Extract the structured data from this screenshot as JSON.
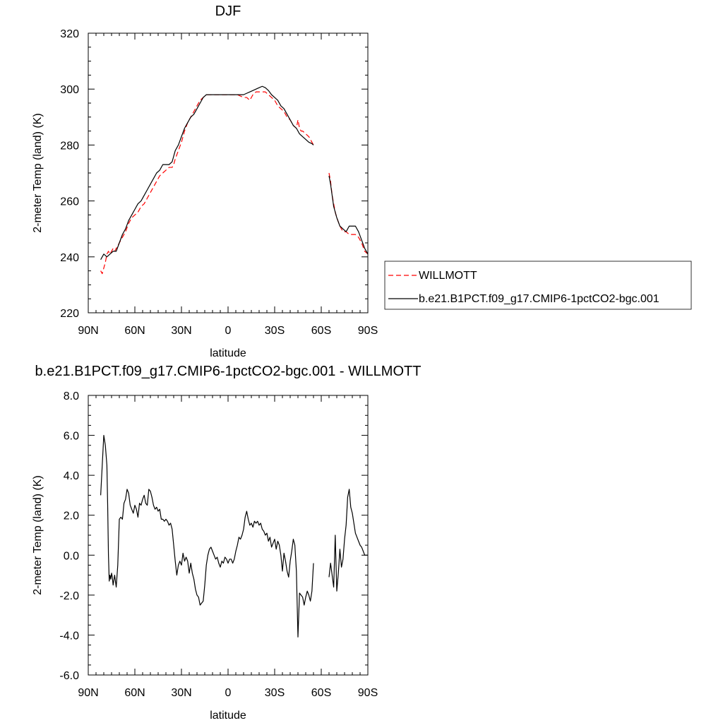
{
  "chart_data": [
    {
      "type": "line",
      "title": "DJF",
      "xlabel": "latitude",
      "ylabel": "2-meter Temp (land) (K)",
      "x_direction": "north-to-south",
      "xlim": [
        90,
        -90
      ],
      "ylim": [
        220,
        320
      ],
      "x_ticks": [
        90,
        60,
        30,
        0,
        -30,
        -60,
        -90
      ],
      "x_tick_labels": [
        "90N",
        "60N",
        "30N",
        "0",
        "30S",
        "60S",
        "90S"
      ],
      "y_ticks": [
        220,
        240,
        260,
        280,
        300,
        320
      ],
      "y_tick_labels": [
        "220",
        "240",
        "260",
        "280",
        "300",
        "320"
      ],
      "legend": {
        "placement": "right",
        "entries": [
          {
            "label": "WILLMOTT",
            "color": "#ff0000",
            "dash": "dashed"
          },
          {
            "label": "b.e21.B1PCT.f09_g17.CMIP6-1pctCO2-bgc.001",
            "color": "#000000",
            "dash": "solid"
          }
        ]
      },
      "series": [
        {
          "name": "WILLMOTT",
          "color": "#ff0000",
          "dash": "dashed",
          "segments": [
            {
              "x": [
                82,
                81,
                80,
                79,
                78,
                77,
                76,
                75,
                74,
                73,
                72,
                71,
                70,
                68,
                66,
                64,
                62,
                60,
                58,
                56,
                54,
                52,
                50,
                48,
                46,
                44,
                42,
                40,
                38,
                36,
                35,
                34,
                32,
                30,
                28,
                26,
                24,
                22,
                20,
                18,
                16,
                14,
                12,
                10,
                8,
                6,
                4,
                2,
                0,
                -2,
                -4,
                -6,
                -8,
                -10,
                -12,
                -14,
                -16,
                -18,
                -20,
                -22,
                -24,
                -26,
                -28,
                -30,
                -32,
                -34,
                -36,
                -38,
                -40,
                -42,
                -44,
                -45,
                -46,
                -47,
                -48,
                -50,
                -52,
                -54,
                -55
              ],
              "y": [
                235,
                234,
                236,
                238,
                241,
                242,
                241,
                242,
                243,
                242,
                243,
                244,
                245,
                247,
                249,
                252,
                254,
                255,
                256,
                258,
                259,
                261,
                263,
                265,
                267,
                269,
                270,
                271,
                272,
                272,
                273,
                275,
                278,
                281,
                285,
                288,
                290,
                292,
                294,
                296,
                297,
                298,
                298,
                298,
                298,
                298,
                298,
                298,
                298,
                298,
                298,
                298,
                297.5,
                297,
                297,
                296,
                298,
                299,
                299,
                299,
                299,
                298,
                297,
                296,
                294,
                293,
                292,
                290,
                289,
                287,
                286,
                289,
                286,
                285,
                285,
                284,
                283,
                281,
                280
              ]
            },
            {
              "x": [
                -65,
                -66,
                -67,
                -68,
                -69,
                -70,
                -72,
                -74,
                -76,
                -78,
                -80,
                -82,
                -84,
                -86,
                -88,
                -90
              ],
              "y": [
                270,
                267,
                262,
                259,
                256,
                254,
                251,
                249,
                249,
                248,
                248,
                248,
                247,
                245,
                242,
                241
              ]
            }
          ]
        },
        {
          "name": "b.e21.B1PCT.f09_g17.CMIP6-1pctCO2-bgc.001",
          "color": "#000000",
          "dash": "solid",
          "segments": [
            {
              "x": [
                82,
                80,
                78,
                76,
                74,
                72,
                70,
                68,
                66,
                64,
                62,
                60,
                58,
                56,
                54,
                52,
                50,
                48,
                46,
                44,
                42,
                40,
                38,
                36,
                35,
                34,
                32,
                30,
                28,
                26,
                24,
                22,
                20,
                18,
                16,
                14,
                12,
                10,
                8,
                6,
                4,
                2,
                0,
                -2,
                -4,
                -6,
                -8,
                -10,
                -12,
                -14,
                -16,
                -18,
                -20,
                -22,
                -24,
                -26,
                -28,
                -30,
                -32,
                -34,
                -36,
                -38,
                -40,
                -42,
                -44,
                -46,
                -48,
                -50,
                -52,
                -54,
                -55
              ],
              "y": [
                239,
                241,
                240,
                241,
                242,
                242,
                245,
                248,
                250,
                253,
                255,
                257,
                259,
                260,
                262,
                264,
                266,
                268,
                270,
                271,
                273,
                273,
                273,
                274,
                276,
                278,
                280,
                283,
                286,
                288,
                290,
                291,
                293,
                295,
                297,
                298,
                298,
                298,
                298,
                298,
                298,
                298,
                298,
                298,
                298,
                298,
                298,
                298,
                298.5,
                299,
                299.5,
                300,
                300.5,
                301,
                300.5,
                299.5,
                298,
                297,
                296,
                294,
                293,
                291,
                289,
                287,
                286,
                284,
                283,
                282,
                281,
                280.5,
                280
              ]
            },
            {
              "x": [
                -65,
                -66,
                -67,
                -68,
                -69,
                -70,
                -72,
                -74,
                -76,
                -78,
                -80,
                -82,
                -84,
                -86,
                -88,
                -90
              ],
              "y": [
                269,
                266,
                262,
                258,
                256,
                254,
                251,
                250,
                249,
                251,
                251,
                251,
                249,
                246,
                243,
                241
              ]
            }
          ]
        }
      ]
    },
    {
      "type": "line",
      "title": "b.e21.B1PCT.f09_g17.CMIP6-1pctCO2-bgc.001 - WILLMOTT",
      "xlabel": "latitude",
      "ylabel": "2-meter Temp (land) (K)",
      "x_direction": "north-to-south",
      "xlim": [
        90,
        -90
      ],
      "ylim": [
        -6,
        8
      ],
      "x_ticks": [
        90,
        60,
        30,
        0,
        -30,
        -60,
        -90
      ],
      "x_tick_labels": [
        "90N",
        "60N",
        "30N",
        "0",
        "30S",
        "60S",
        "90S"
      ],
      "y_ticks": [
        -6,
        -4,
        -2,
        0,
        2,
        4,
        6,
        8
      ],
      "y_tick_labels": [
        "-6.0",
        "-4.0",
        "-2.0",
        "0.0",
        "2.0",
        "4.0",
        "6.0",
        "8.0"
      ],
      "series": [
        {
          "color": "#000000",
          "dash": "solid",
          "segments": [
            {
              "x": [
                82,
                81,
                80,
                79,
                78,
                77.5,
                77,
                76.5,
                76,
                75.5,
                75,
                74.5,
                74,
                73,
                72,
                71,
                70,
                69,
                68,
                67,
                66,
                65,
                64,
                63,
                62,
                61,
                60,
                59,
                58,
                57,
                56,
                55,
                54,
                53,
                52,
                51,
                50,
                49,
                48,
                47,
                46,
                45,
                44,
                43,
                42,
                41,
                40,
                39,
                38,
                37,
                36,
                35,
                34,
                33,
                32,
                31,
                30,
                29,
                28,
                27,
                26,
                25,
                24,
                23,
                22,
                21,
                20,
                19,
                18,
                17,
                16,
                15,
                14,
                13,
                12,
                11,
                10,
                9,
                8,
                7,
                6,
                5,
                4,
                3,
                2,
                1,
                0,
                -1,
                -2,
                -3,
                -4,
                -5,
                -6,
                -7,
                -8,
                -9,
                -10,
                -11,
                -12,
                -13,
                -14,
                -15,
                -16,
                -17,
                -18,
                -19,
                -20,
                -21,
                -22,
                -23,
                -24,
                -25,
                -26,
                -27,
                -28,
                -29,
                -30,
                -31,
                -32,
                -33,
                -34,
                -35,
                -36,
                -37,
                -38,
                -39,
                -40,
                -41,
                -42,
                -43,
                -44,
                -45,
                -46,
                -47,
                -48,
                -49,
                -50,
                -51,
                -52,
                -53,
                -54,
                -55
              ],
              "y": [
                3.0,
                4.5,
                6.0,
                5.5,
                4.5,
                2.5,
                0.0,
                -1.3,
                -1.0,
                -1.2,
                -0.9,
                -1.1,
                -1.5,
                -1.0,
                -1.6,
                -0.5,
                1.8,
                1.9,
                1.8,
                2.6,
                2.8,
                3.3,
                3.1,
                2.5,
                2.3,
                2.1,
                2.5,
                2.3,
                1.9,
                2.6,
                2.5,
                2.8,
                3.0,
                2.6,
                2.5,
                3.3,
                3.2,
                2.9,
                2.5,
                2.3,
                2.4,
                2.2,
                2.3,
                1.8,
                1.8,
                1.7,
                1.8,
                1.7,
                1.5,
                1.6,
                1.3,
                0.5,
                -0.3,
                -1.0,
                -0.5,
                -0.3,
                -0.5,
                0.1,
                -0.3,
                -0.1,
                -0.3,
                -0.9,
                -0.4,
                -0.9,
                -1.2,
                -1.7,
                -2.0,
                -2.1,
                -2.5,
                -2.4,
                -2.3,
                -1.5,
                -0.5,
                0.0,
                0.3,
                0.4,
                0.2,
                0.0,
                -0.2,
                -0.1,
                -0.4,
                -0.6,
                -0.3,
                -0.4,
                -0.1,
                -0.2,
                -0.4,
                -0.2,
                -0.2,
                -0.4,
                -0.2,
                0.2,
                0.5,
                0.9,
                0.8,
                1.0,
                1.3,
                1.9,
                2.2,
                1.8,
                1.5,
                1.6,
                1.4,
                1.7,
                1.6,
                1.7,
                1.5,
                1.6,
                1.3,
                1.2,
                1.0,
                1.1,
                0.7,
                0.9,
                0.4,
                0.6,
                0.8,
                0.3,
                0.7,
                0.5,
                0.0,
                -0.8,
                0.1,
                -0.3,
                -0.8,
                -1.1,
                -0.3,
                0.2,
                0.8,
                0.5,
                -0.8,
                -4.1,
                -1.9,
                -2.0,
                -2.1,
                -2.5,
                -2.1,
                -1.8,
                -2.0,
                -2.3,
                -1.8,
                -0.4
              ]
            },
            {
              "x": [
                -65,
                -66,
                -67,
                -68,
                -69,
                -70,
                -71,
                -72,
                -73,
                -74,
                -75,
                -76,
                -77,
                -78,
                -79,
                -80,
                -81,
                -82,
                -83,
                -84,
                -85,
                -86,
                -87,
                -88,
                -89,
                -90
              ],
              "y": [
                -1.1,
                -0.4,
                -1.0,
                -1.6,
                1.0,
                -1.8,
                -0.9,
                0.3,
                -0.6,
                -0.2,
                0.8,
                1.5,
                2.9,
                3.3,
                2.4,
                2.1,
                1.6,
                1.1,
                0.9,
                0.7,
                0.5,
                0.4,
                0.2,
                0.0,
                0.0,
                0.0
              ]
            }
          ]
        }
      ]
    }
  ]
}
